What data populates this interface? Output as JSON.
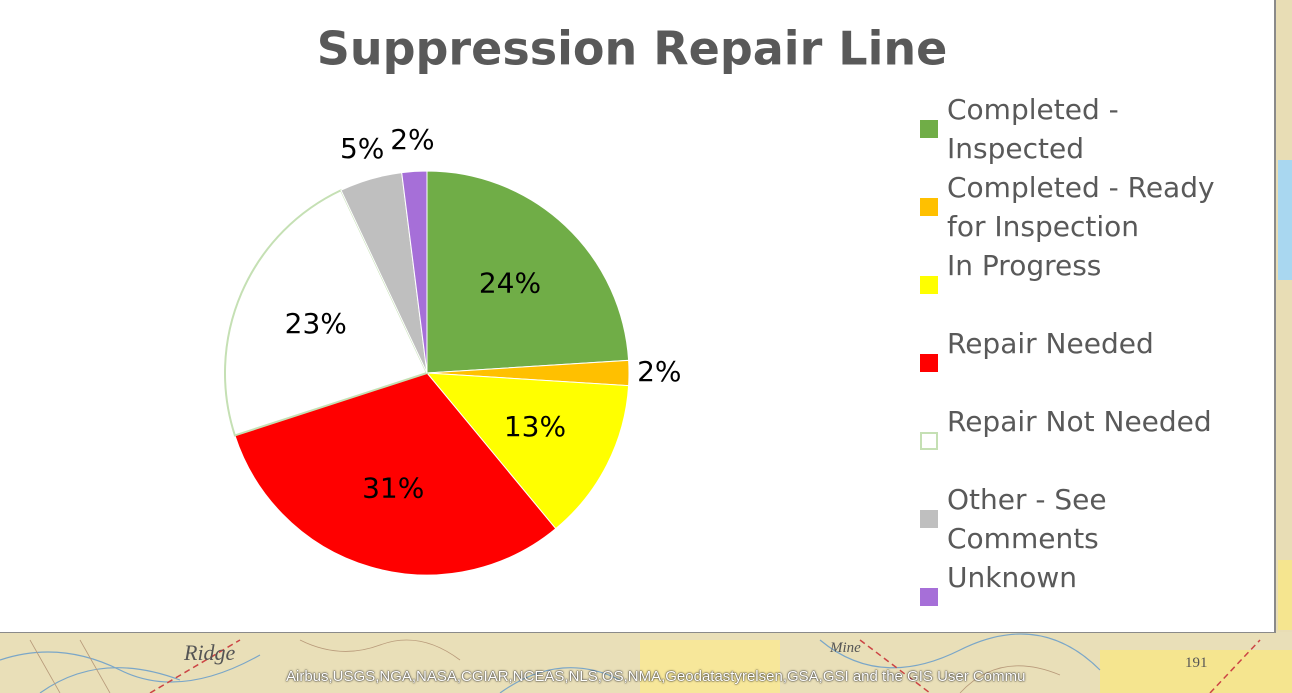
{
  "chart_data": {
    "type": "pie",
    "title": "Suppression Repair Line",
    "categories": [
      "Completed - Inspected",
      "Completed - Ready for Inspection",
      "In Progress",
      "Repair Needed",
      "Repair Not Needed",
      "Other - See Comments",
      "Unknown"
    ],
    "values": [
      24,
      2,
      13,
      31,
      23,
      5,
      2
    ],
    "value_labels": [
      "24%",
      "2%",
      "13%",
      "31%",
      "23%",
      "5%",
      "2%"
    ],
    "colors": [
      "#70ad47",
      "#ffc000",
      "#ffff00",
      "#ff0000",
      "#ffffff",
      "#bfbfbf",
      "#a66fd8"
    ]
  },
  "map": {
    "attribution": "Airbus,USGS,NGA,NASA,CGIAR,NCEAS,NLS,OS,NMA,Geodatastyrelsen,GSA,GSI and the GIS User Commu",
    "labels": [
      "Ridge",
      "Mine",
      "191"
    ]
  }
}
